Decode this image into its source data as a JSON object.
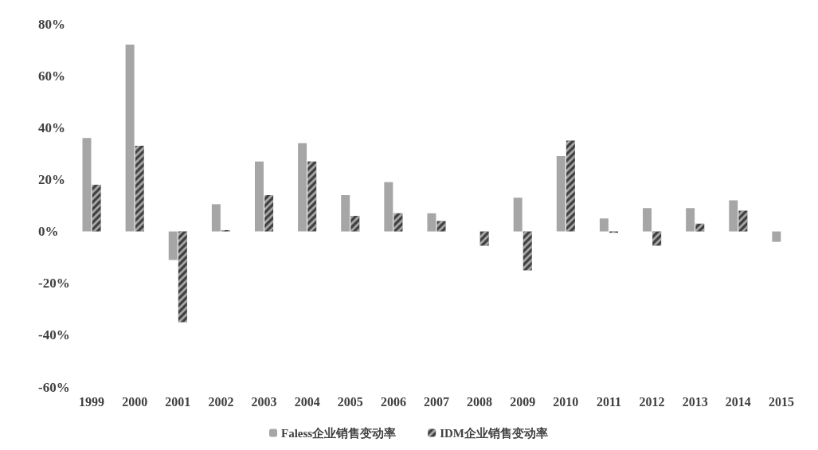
{
  "chart_data": {
    "type": "bar",
    "categories": [
      "1999",
      "2000",
      "2001",
      "2002",
      "2003",
      "2004",
      "2005",
      "2006",
      "2007",
      "2008",
      "2009",
      "2010",
      "2011",
      "2012",
      "2013",
      "2014",
      "2015"
    ],
    "series": [
      {
        "name": "Faless企业销售变动率",
        "color": "#a6a6a6",
        "values": [
          36,
          72,
          -11,
          10.5,
          27,
          34,
          14,
          19,
          7,
          null,
          13,
          29,
          5,
          9,
          9,
          12,
          -4
        ]
      },
      {
        "name": "IDM企业销售变动率",
        "color": "#404040",
        "values": [
          18,
          33,
          -35,
          0.5,
          14,
          27,
          6,
          7,
          4,
          -5.5,
          -15,
          35,
          -0.5,
          -5.5,
          3,
          8,
          null
        ]
      }
    ],
    "ylim": [
      -60,
      80
    ],
    "yticks": [
      {
        "value": -60,
        "label": "-60%"
      },
      {
        "value": -40,
        "label": "-40%"
      },
      {
        "value": -20,
        "label": "-20%"
      },
      {
        "value": 0,
        "label": "0%"
      },
      {
        "value": 20,
        "label": "20%"
      },
      {
        "value": 40,
        "label": "40%"
      },
      {
        "value": 60,
        "label": "60%"
      },
      {
        "value": 80,
        "label": "80%"
      }
    ],
    "grid": false,
    "legend": "bottom"
  }
}
